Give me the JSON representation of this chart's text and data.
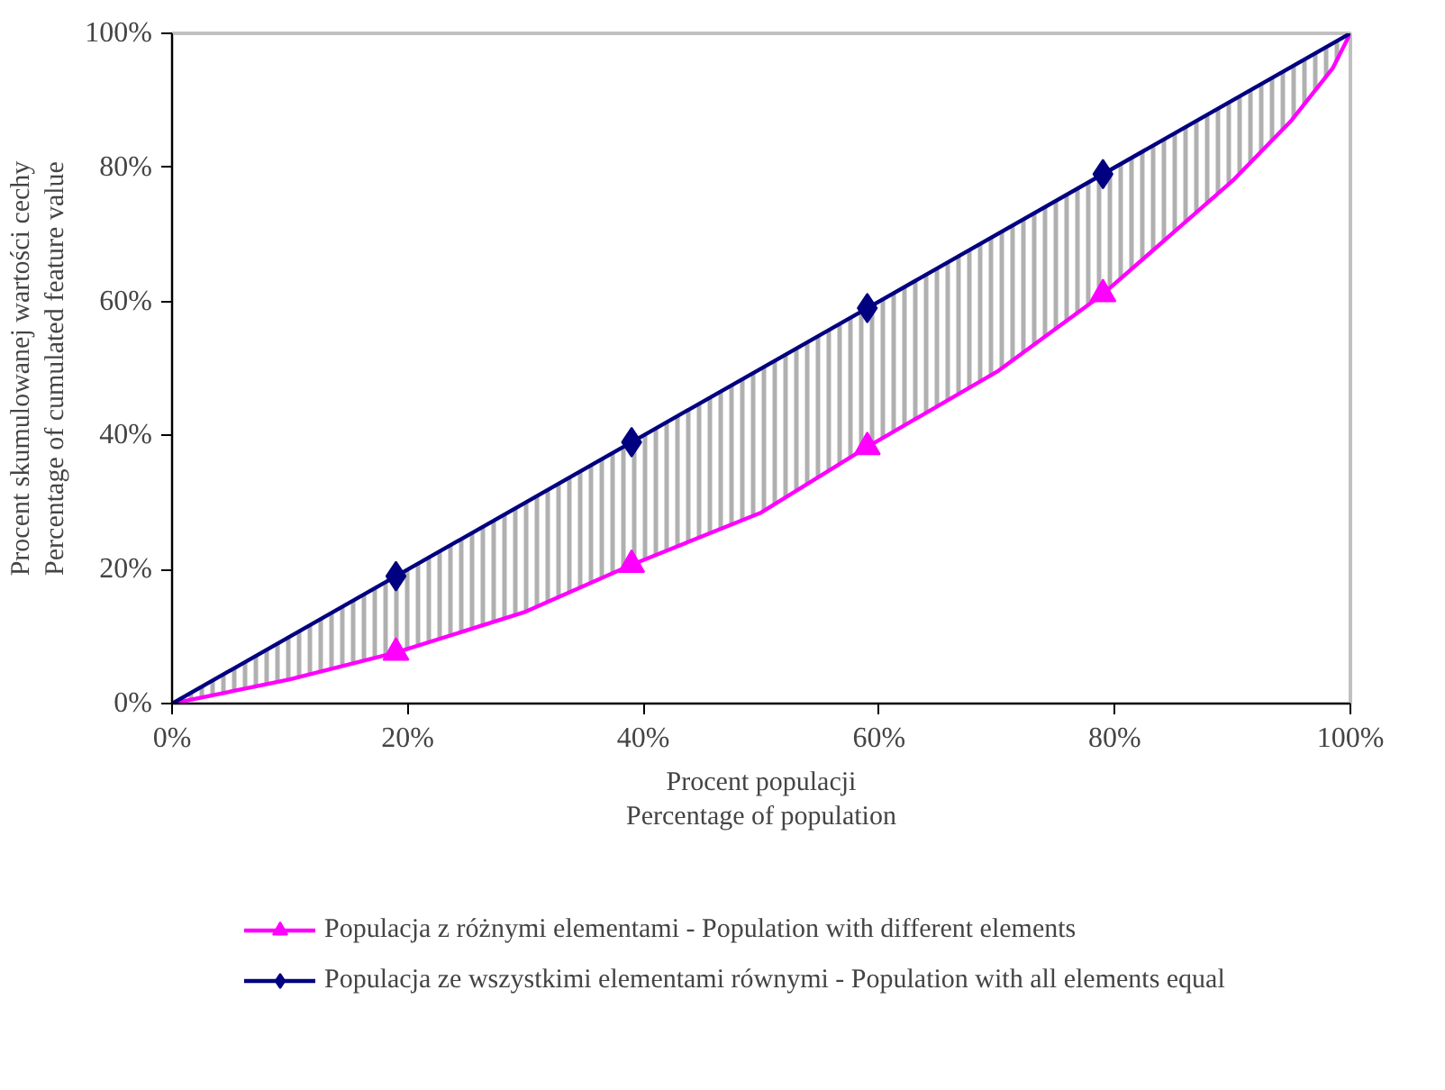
{
  "chart_data": {
    "type": "line",
    "xlabel": "Procent populacji\nPercentage of population",
    "ylabel": "Procent skumulowanej wartości cechy\nPercentage of cumulated feature value",
    "xlim": [
      0,
      100
    ],
    "ylim": [
      0,
      100
    ],
    "xticks": [
      {
        "value": 0,
        "label": "0%"
      },
      {
        "value": 20,
        "label": "20%"
      },
      {
        "value": 40,
        "label": "40%"
      },
      {
        "value": 60,
        "label": "60%"
      },
      {
        "value": 80,
        "label": "80%"
      },
      {
        "value": 100,
        "label": "100%"
      }
    ],
    "yticks": [
      {
        "value": 0,
        "label": "0%"
      },
      {
        "value": 20,
        "label": "20%"
      },
      {
        "value": 40,
        "label": "40%"
      },
      {
        "value": 60,
        "label": "60%"
      },
      {
        "value": 80,
        "label": "80%"
      },
      {
        "value": 100,
        "label": "100%"
      }
    ],
    "grid": false,
    "legend": "bottom",
    "marker": "none",
    "series": [
      {
        "name": "Populacja z różnymi elementami - Population with different elements",
        "color": "#ff00ff",
        "x": [
          0,
          10,
          19,
          30,
          39,
          50,
          59,
          70,
          79,
          90,
          95,
          98.5,
          100
        ],
        "values": [
          0,
          3.6,
          7.6,
          13.7,
          20.7,
          28.5,
          38.3,
          49.5,
          61.1,
          78,
          87,
          94.8,
          100
        ],
        "lower": [
          0,
          3.6,
          7.6,
          13.7,
          20.7,
          28.5,
          38.3,
          49.5,
          61.1,
          78,
          87,
          94.8,
          100
        ],
        "upper": [
          0,
          10,
          19,
          30,
          39,
          50,
          59,
          70,
          79,
          90,
          95,
          98.5,
          100
        ]
      },
      {
        "type": "scatter",
        "marker": "triangle",
        "color": "#ff00ff",
        "x": [
          19,
          39,
          59,
          79
        ],
        "values": [
          7.6,
          20.7,
          38.3,
          61.1
        ]
      },
      {
        "name": "Populacja ze wszystkimi elementami równymi - Population with all elements equal",
        "color": "#000080",
        "x": [
          0,
          19,
          39,
          59,
          79,
          100
        ],
        "values": [
          0,
          19,
          39,
          59,
          79,
          100
        ]
      },
      {
        "type": "scatter",
        "marker": "diamond",
        "color": "#000080",
        "x": [
          19,
          39,
          59,
          79
        ],
        "values": [
          19,
          39,
          59,
          79
        ]
      }
    ]
  }
}
